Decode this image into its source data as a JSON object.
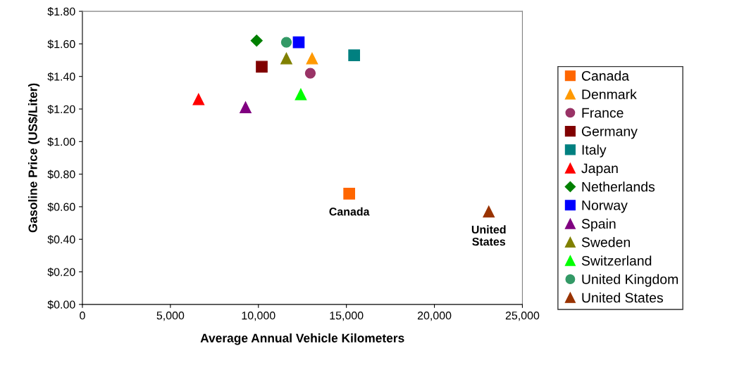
{
  "chart_data": {
    "type": "scatter",
    "xlabel": "Average Annual Vehicle Kilometers",
    "ylabel": "Gasoline Price (US$/Liter)",
    "xlim": [
      0,
      25000
    ],
    "xticks": [
      0,
      {
        "value": 5000,
        "label": "5,000"
      },
      {
        "value": 10000,
        "label": "10,000"
      },
      {
        "value": 15000,
        "label": "15,000"
      },
      {
        "value": 20000,
        "label": "20,000"
      },
      {
        "value": 25000,
        "label": "25,000"
      }
    ],
    "ylim": [
      0,
      1.8
    ],
    "yticks": [
      {
        "value": 0,
        "label": "$0.00"
      },
      {
        "value": 0.2,
        "label": "$0.20"
      },
      {
        "value": 0.4,
        "label": "$0.40"
      },
      {
        "value": 0.6,
        "label": "$0.60"
      },
      {
        "value": 0.8,
        "label": "$0.80"
      },
      {
        "value": 1.0,
        "label": "$1.00"
      },
      {
        "value": 1.2,
        "label": "$1.20"
      },
      {
        "value": 1.4,
        "label": "$1.40"
      },
      {
        "value": 1.6,
        "label": "$1.60"
      },
      {
        "value": 1.8,
        "label": "$1.80"
      }
    ],
    "grid": false,
    "legend": "right",
    "series": [
      {
        "name": "Canada",
        "color": "#ff6600",
        "marker": "square",
        "x": [
          15160
        ],
        "values": [
          0.68
        ]
      },
      {
        "name": "Denmark",
        "color": "#ff9900",
        "marker": "triangle",
        "x": [
          13050
        ],
        "values": [
          1.51
        ]
      },
      {
        "name": "France",
        "color": "#993366",
        "marker": "circle",
        "x": [
          12950
        ],
        "values": [
          1.42
        ]
      },
      {
        "name": "Germany",
        "color": "#800000",
        "marker": "square",
        "x": [
          10190
        ],
        "values": [
          1.46
        ]
      },
      {
        "name": "Italy",
        "color": "#008080",
        "marker": "square",
        "x": [
          15440
        ],
        "values": [
          1.53
        ]
      },
      {
        "name": "Japan",
        "color": "#ff0000",
        "marker": "triangle",
        "x": [
          6600
        ],
        "values": [
          1.26
        ]
      },
      {
        "name": "Netherlands",
        "color": "#008000",
        "marker": "diamond",
        "x": [
          9900
        ],
        "values": [
          1.62
        ]
      },
      {
        "name": "Norway",
        "color": "#0000ff",
        "marker": "square",
        "x": [
          12290
        ],
        "values": [
          1.61
        ]
      },
      {
        "name": "Spain",
        "color": "#800080",
        "marker": "triangle",
        "x": [
          9270
        ],
        "values": [
          1.21
        ]
      },
      {
        "name": "Sweden",
        "color": "#808000",
        "marker": "triangle",
        "x": [
          11590
        ],
        "values": [
          1.51
        ]
      },
      {
        "name": "Switzerland",
        "color": "#00ff00",
        "marker": "triangle",
        "x": [
          12410
        ],
        "values": [
          1.29
        ]
      },
      {
        "name": "United Kingdom",
        "color": "#339966",
        "marker": "circle",
        "x": [
          11590
        ],
        "values": [
          1.61
        ]
      },
      {
        "name": "United States",
        "color": "#993300",
        "marker": "triangle",
        "x": [
          23090
        ],
        "values": [
          0.57
        ]
      }
    ],
    "annotations": [
      {
        "text": "Canada",
        "x": 15160,
        "y": 0.68
      },
      {
        "text": "United\nStates",
        "x": 23090,
        "y": 0.57
      }
    ]
  }
}
